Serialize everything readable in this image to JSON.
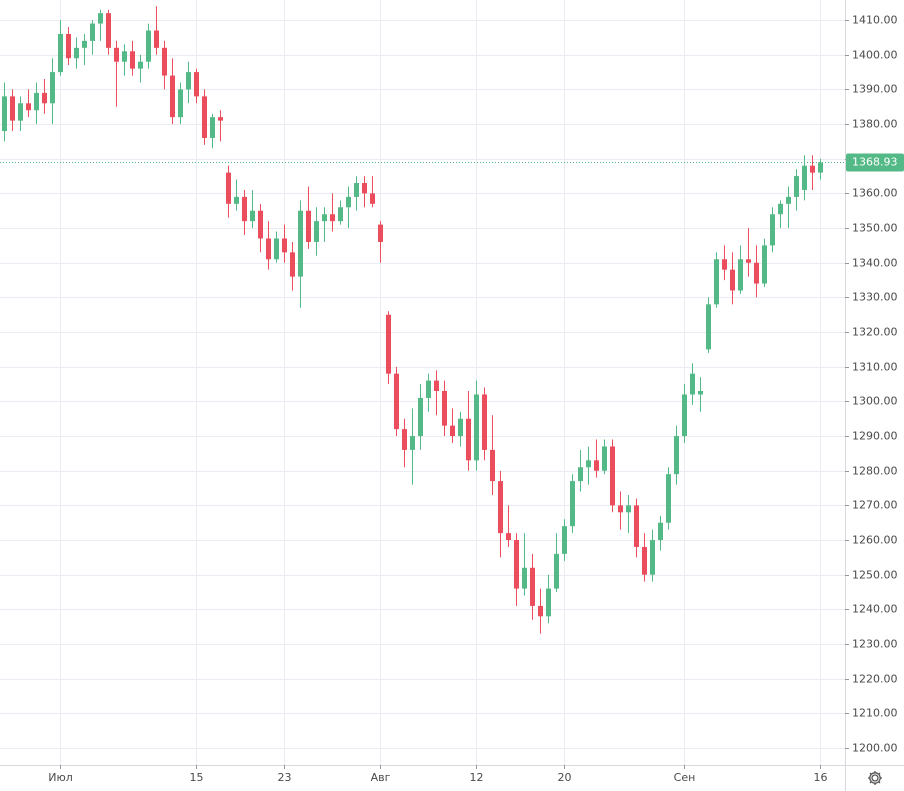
{
  "chart_data": {
    "type": "candlestick",
    "up_color": "#53b987",
    "down_color": "#eb4d5c",
    "grid": true,
    "ylim": [
      1195.1,
      1415.8
    ],
    "yticks": [
      {
        "value": 1200,
        "label": "1200.00"
      },
      {
        "value": 1210,
        "label": "1210.00"
      },
      {
        "value": 1220,
        "label": "1220.00"
      },
      {
        "value": 1230,
        "label": "1230.00"
      },
      {
        "value": 1240,
        "label": "1240.00"
      },
      {
        "value": 1250,
        "label": "1250.00"
      },
      {
        "value": 1260,
        "label": "1260.00"
      },
      {
        "value": 1270,
        "label": "1270.00"
      },
      {
        "value": 1280,
        "label": "1280.00"
      },
      {
        "value": 1290,
        "label": "1290.00"
      },
      {
        "value": 1300,
        "label": "1300.00"
      },
      {
        "value": 1310,
        "label": "1310.00"
      },
      {
        "value": 1320,
        "label": "1320.00"
      },
      {
        "value": 1330,
        "label": "1330.00"
      },
      {
        "value": 1340,
        "label": "1340.00"
      },
      {
        "value": 1350,
        "label": "1350.00"
      },
      {
        "value": 1360,
        "label": "1360.00"
      },
      {
        "value": 1370,
        "label": "1370.00"
      },
      {
        "value": 1380,
        "label": "1380.00"
      },
      {
        "value": 1390,
        "label": "1390.00"
      },
      {
        "value": 1400,
        "label": "1400.00"
      },
      {
        "value": 1410,
        "label": "1410.00"
      }
    ],
    "xticks": [
      {
        "value": 7,
        "label": "Июл"
      },
      {
        "value": 24,
        "label": "15"
      },
      {
        "value": 35,
        "label": "23"
      },
      {
        "value": 47,
        "label": "Авг"
      },
      {
        "value": 59,
        "label": "12"
      },
      {
        "value": 70,
        "label": "20"
      },
      {
        "value": 85,
        "label": "Сен"
      },
      {
        "value": 102,
        "label": "16"
      }
    ],
    "last_price": 1368.93,
    "open": [
      1378,
      1388,
      1381,
      1386,
      1384,
      1389,
      1386,
      1395,
      1406,
      1399,
      1402,
      1404,
      1409,
      1412,
      1402,
      1398,
      1401,
      1396,
      1398,
      1407,
      1402,
      1394,
      1382,
      1390,
      1395,
      1388,
      1376,
      1382,
      1366,
      1357,
      1359,
      1352,
      1355,
      1347,
      1341,
      1347,
      1343,
      1336,
      1355,
      1346,
      1352,
      1354,
      1352,
      1356,
      1359,
      1363,
      1360,
      1351,
      1325,
      1308,
      1292,
      1286,
      1290,
      1301,
      1306,
      1303,
      1293,
      1290,
      1295,
      1283,
      1302,
      1286,
      1277,
      1262,
      1260,
      1246,
      1252,
      1241,
      1238,
      1246,
      1256,
      1264,
      1277,
      1281,
      1283,
      1280,
      1287,
      1270,
      1268,
      1270,
      1258,
      1250,
      1260,
      1265,
      1279,
      1290,
      1302,
      1302,
      1315,
      1328,
      1341,
      1338,
      1332,
      1341,
      1340,
      1334,
      1345,
      1354,
      1357,
      1359,
      1361,
      1368,
      1366
    ],
    "high": [
      1392,
      1390,
      1388,
      1390,
      1392,
      1393,
      1399,
      1410,
      1408,
      1405,
      1406,
      1410,
      1413,
      1413,
      1404,
      1403,
      1404,
      1400,
      1409,
      1414,
      1404,
      1399,
      1392,
      1398,
      1396,
      1390,
      1383,
      1384,
      1368,
      1364,
      1361,
      1361,
      1357,
      1352,
      1349,
      1351,
      1346,
      1358,
      1362,
      1356,
      1356,
      1360,
      1358,
      1362,
      1365,
      1365,
      1365,
      1352,
      1326,
      1310,
      1295,
      1298,
      1305,
      1308,
      1309,
      1306,
      1298,
      1297,
      1303,
      1306,
      1304,
      1296,
      1280,
      1270,
      1262,
      1262,
      1256,
      1246,
      1250,
      1262,
      1266,
      1279,
      1286,
      1287,
      1289,
      1289,
      1289,
      1274,
      1273,
      1272,
      1262,
      1263,
      1267,
      1281,
      1293,
      1305,
      1311,
      1307,
      1330,
      1343,
      1345,
      1343,
      1345,
      1350,
      1345,
      1347,
      1356,
      1358,
      1362,
      1367,
      1371,
      1371,
      1370
    ],
    "low": [
      1375,
      1378,
      1378,
      1382,
      1380,
      1383,
      1380,
      1394,
      1397,
      1396,
      1397,
      1400,
      1404,
      1400,
      1385,
      1394,
      1394,
      1392,
      1396,
      1400,
      1390,
      1380,
      1380,
      1386,
      1386,
      1374,
      1373,
      1375,
      1353,
      1355,
      1348,
      1350,
      1343,
      1338,
      1340,
      1340,
      1332,
      1327,
      1344,
      1342,
      1346,
      1349,
      1351,
      1350,
      1355,
      1356,
      1356,
      1340,
      1305,
      1290,
      1281,
      1276,
      1286,
      1297,
      1296,
      1290,
      1288,
      1287,
      1280,
      1280,
      1283,
      1273,
      1255,
      1258,
      1241,
      1244,
      1237,
      1233,
      1236,
      1245,
      1254,
      1262,
      1274,
      1276,
      1278,
      1279,
      1268,
      1263,
      1262,
      1255,
      1248,
      1248,
      1257,
      1263,
      1276,
      1288,
      1299,
      1297,
      1314,
      1327,
      1335,
      1328,
      1331,
      1336,
      1330,
      1333,
      1343,
      1350,
      1350,
      1355,
      1358,
      1361,
      1364
    ],
    "close": [
      1388,
      1381,
      1386,
      1384,
      1389,
      1386,
      1395,
      1406,
      1399,
      1402,
      1404,
      1409,
      1412,
      1402,
      1398,
      1401,
      1396,
      1398,
      1407,
      1402,
      1394,
      1382,
      1390,
      1395,
      1388,
      1376,
      1382,
      1381,
      1357,
      1359,
      1352,
      1355,
      1347,
      1341,
      1347,
      1343,
      1336,
      1355,
      1346,
      1352,
      1354,
      1352,
      1356,
      1359,
      1363,
      1360,
      1357,
      1346,
      1308,
      1292,
      1286,
      1290,
      1301,
      1306,
      1303,
      1293,
      1290,
      1295,
      1283,
      1302,
      1286,
      1277,
      1262,
      1260,
      1246,
      1252,
      1241,
      1238,
      1246,
      1256,
      1264,
      1277,
      1281,
      1283,
      1280,
      1287,
      1270,
      1268,
      1270,
      1258,
      1250,
      1260,
      1265,
      1279,
      1290,
      1302,
      1308,
      1303,
      1328,
      1341,
      1338,
      1332,
      1341,
      1340,
      1334,
      1345,
      1354,
      1357,
      1359,
      1365,
      1368,
      1366,
      1368.93
    ]
  }
}
